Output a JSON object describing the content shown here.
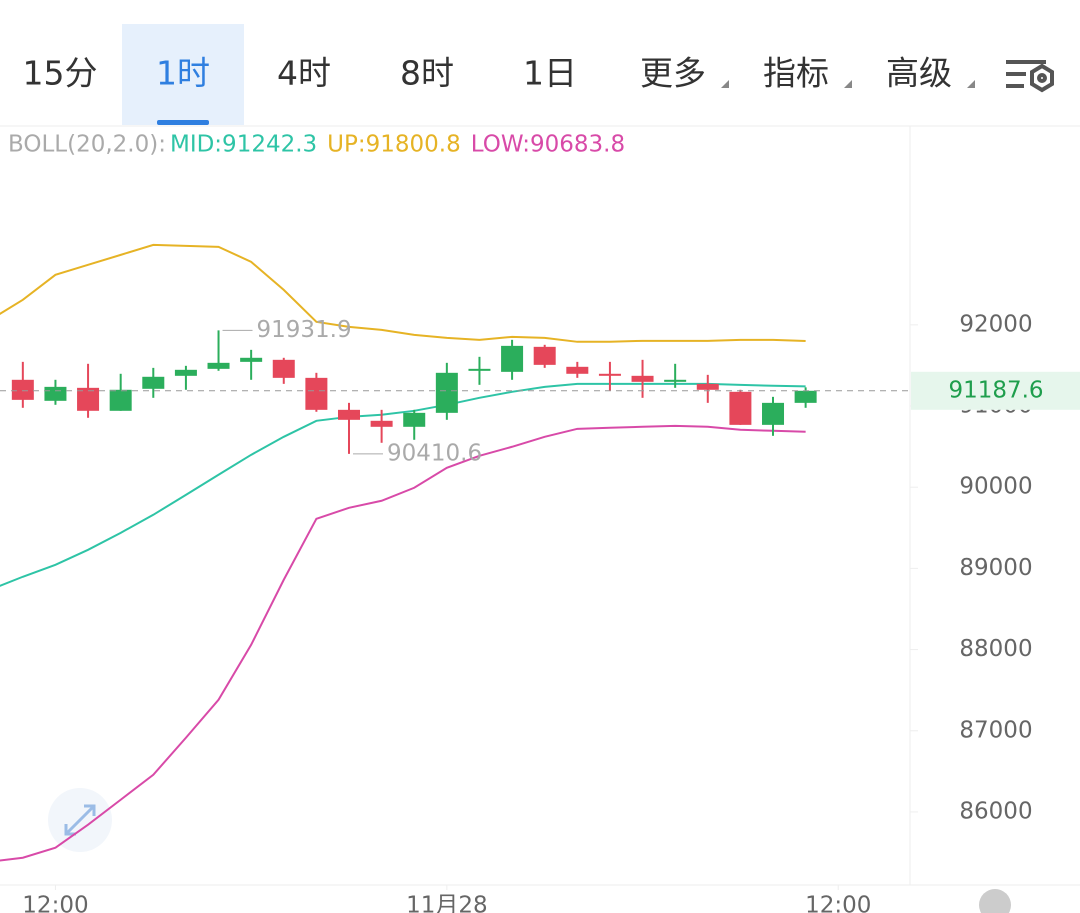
{
  "tabs": [
    "15分",
    "1时",
    "4时",
    "8时",
    "1日",
    "更多",
    "指标",
    "高级"
  ],
  "selected_tab": 1,
  "chart_data": {
    "type": "candlestick",
    "indicator": "BOLL(20,2.0):",
    "x": [
      0,
      1,
      2,
      3,
      4,
      5,
      6,
      7,
      8,
      9,
      10,
      11,
      12,
      13,
      14,
      15,
      16,
      17,
      18,
      19,
      20,
      21,
      22,
      23,
      24
    ],
    "open": [
      91323,
      91064,
      91224,
      90941,
      91212,
      91372,
      91458,
      91544,
      91569,
      91347,
      90953,
      90818,
      90744,
      90916,
      91434,
      91421,
      91729,
      91483,
      91397,
      91372,
      91298,
      91273,
      91175,
      90768,
      91039
    ],
    "high": [
      91544,
      91323,
      91520,
      91397,
      91470,
      91495,
      91931.9,
      91692,
      91594,
      91409,
      91039,
      90953,
      90953,
      91532,
      91606,
      91815,
      91754,
      91544,
      91544,
      91569,
      91520,
      91384,
      91200,
      91113,
      91230
    ],
    "low": [
      90978,
      91015,
      90855,
      90941,
      91101,
      91200,
      91434,
      91323,
      91273,
      90929,
      90410.6,
      90547,
      90584,
      90830,
      91261,
      91323,
      91470,
      91347,
      91187,
      91101,
      91224,
      91039,
      90768,
      90633,
      90978
    ],
    "close": [
      91076,
      91236,
      90941,
      91200,
      91360,
      91446,
      91532,
      91594,
      91347,
      90953,
      90830,
      90744,
      90916,
      91409,
      91458,
      91741,
      91507,
      91397,
      91372,
      91298,
      91323,
      91200,
      90768,
      91039,
      91187.6
    ],
    "up_color": "#2bae5c",
    "down_color": "#e5475a",
    "bands": {
      "x": [
        -1,
        0,
        1,
        2,
        3,
        4,
        5,
        6,
        7,
        8,
        9,
        10,
        11,
        12,
        13,
        14,
        15,
        16,
        17,
        18,
        19,
        20,
        21,
        22,
        23,
        24
      ],
      "series": [
        {
          "name": "MID:91242.3",
          "color": "#2ec4a6",
          "values": [
            88737,
            88897,
            89044,
            89229,
            89438,
            89660,
            89906,
            90153,
            90399,
            90621,
            90818,
            90867,
            90892,
            90941,
            91015,
            91101,
            91175,
            91236,
            91273,
            91273,
            91273,
            91273,
            91273,
            91261,
            91249,
            91242.3
          ]
        },
        {
          "name": "UP:91800.8",
          "color": "#e6b325",
          "values": [
            92062,
            92308,
            92616,
            92739,
            92862,
            92985,
            92973,
            92961,
            92776,
            92431,
            92037,
            91975,
            91938,
            91877,
            91840,
            91815,
            91852,
            91840,
            91791,
            91791,
            91803,
            91803,
            91803,
            91815,
            91815,
            91800.8
          ]
        },
        {
          "name": "LOW:90683.8",
          "color": "#d84aa8",
          "values": [
            85387,
            85436,
            85559,
            85843,
            86150,
            86458,
            86914,
            87382,
            88059,
            88860,
            89611,
            89746,
            89833,
            89993,
            90239,
            90387,
            90498,
            90621,
            90719,
            90732,
            90744,
            90756,
            90744,
            90707,
            90695,
            90683.8
          ]
        }
      ]
    },
    "annotations": [
      {
        "x": 6,
        "value": 91931.9
      },
      {
        "x": 10,
        "value": 90410.6
      }
    ],
    "last_price": 91187.6,
    "xlim": [
      -0.7,
      27.2
    ],
    "xticks": [
      {
        "value": 1,
        "label": "12:00"
      },
      {
        "value": 13,
        "label": "11月28"
      },
      {
        "value": 25,
        "label": "12:00"
      }
    ],
    "ylim": [
      85100,
      94400
    ],
    "yticks": [
      86000,
      87000,
      88000,
      89000,
      90000,
      91000,
      92000
    ]
  }
}
